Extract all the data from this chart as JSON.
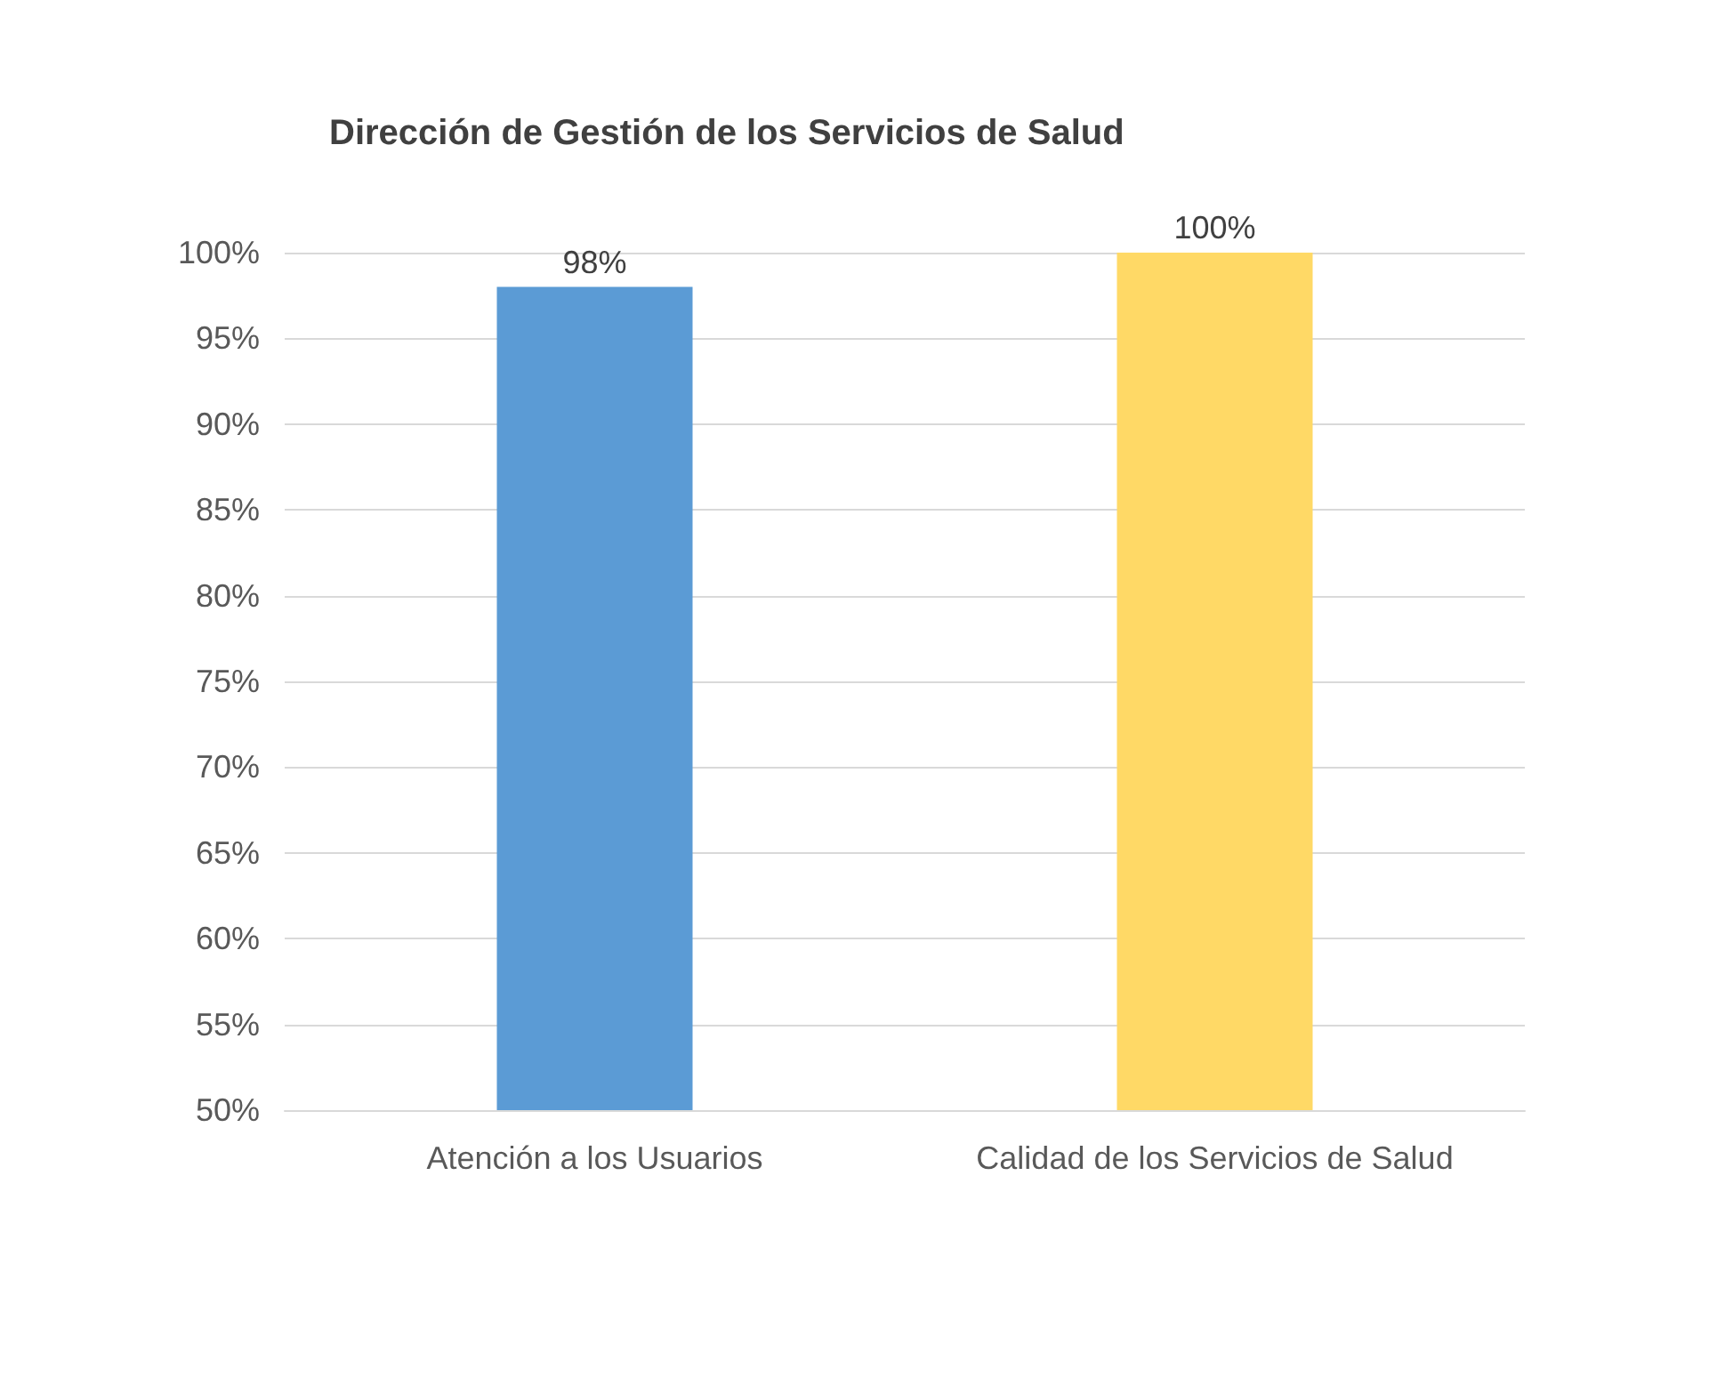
{
  "chart_data": {
    "type": "bar",
    "title": "Dirección de Gestión de los Servicios de Salud",
    "categories": [
      "Atención a los Usuarios",
      "Calidad de los Servicios de Salud"
    ],
    "values": [
      98,
      100
    ],
    "colors": [
      "#5b9bd5",
      "#ffd966"
    ],
    "value_labels": [
      "98%",
      "100%"
    ],
    "ylim": [
      50,
      100
    ],
    "yticks": [
      {
        "value": 50,
        "label": "50%"
      },
      {
        "value": 55,
        "label": "55%"
      },
      {
        "value": 60,
        "label": "60%"
      },
      {
        "value": 65,
        "label": "65%"
      },
      {
        "value": 70,
        "label": "70%"
      },
      {
        "value": 75,
        "label": "75%"
      },
      {
        "value": 80,
        "label": "80%"
      },
      {
        "value": 85,
        "label": "85%"
      },
      {
        "value": 90,
        "label": "90%"
      },
      {
        "value": 95,
        "label": "95%"
      },
      {
        "value": 100,
        "label": "100%"
      }
    ],
    "grid": "y"
  }
}
